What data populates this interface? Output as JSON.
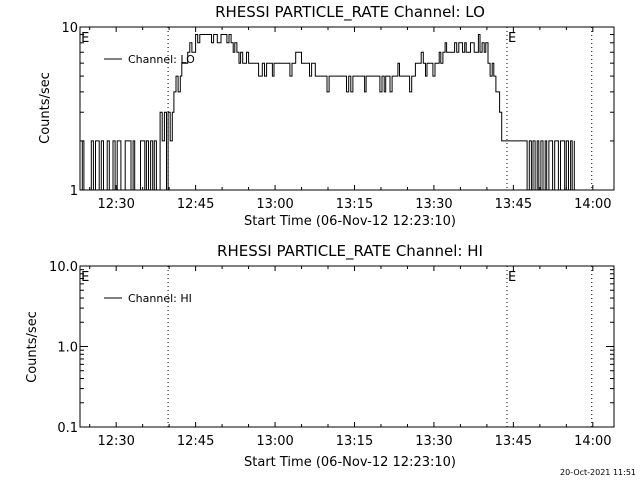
{
  "footer": {
    "stamp": "20-Oct-2021 11:51"
  },
  "chart_data": [
    {
      "type": "line",
      "title": "RHESSI PARTICLE_RATE Channel: LO",
      "xlabel": "Start Time (06-Nov-12 12:23:10)",
      "ylabel": "Counts/sec",
      "x_tick_labels": [
        "12:30",
        "12:45",
        "13:00",
        "13:15",
        "13:30",
        "13:45",
        "14:00"
      ],
      "x_tick_minutes": [
        750,
        765,
        780,
        795,
        810,
        825,
        840
      ],
      "xlim_minutes": [
        743.17,
        844
      ],
      "y_scale": "log",
      "ylim": [
        1,
        10
      ],
      "y_tick_labels": [
        "1",
        "10"
      ],
      "legend": {
        "label": "Channel: LO",
        "position": "top-left"
      },
      "event_markers": [
        {
          "label": "E",
          "time_minutes": 743.2
        },
        {
          "label": "",
          "time_minutes": 759.8
        },
        {
          "label": "E",
          "time_minutes": 823.8
        },
        {
          "label": "",
          "time_minutes": 839.8
        }
      ],
      "series": [
        {
          "name": "Channel: LO",
          "time_minutes": [
            743.2,
            743.6,
            743.9,
            744.2,
            744.6,
            745.0,
            745.3,
            745.7,
            746.1,
            746.5,
            746.8,
            747.2,
            747.6,
            748.0,
            748.3,
            748.7,
            749.1,
            749.4,
            749.8,
            750.2,
            750.6,
            750.9,
            751.3,
            751.7,
            752.0,
            752.4,
            752.8,
            753.2,
            753.5,
            753.9,
            754.3,
            754.6,
            755.0,
            755.4,
            755.7,
            756.1,
            756.5,
            756.9,
            757.2,
            757.6,
            758.0,
            758.3,
            758.7,
            759.1,
            759.5,
            759.8,
            760.2,
            760.6,
            760.9,
            761.3,
            761.7,
            762.1,
            762.4,
            762.8,
            763.2,
            763.5,
            763.9,
            764.3,
            764.6,
            765.0,
            765.4,
            765.8,
            766.1,
            766.5,
            766.9,
            767.2,
            767.6,
            768.0,
            768.4,
            768.7,
            769.1,
            769.5,
            769.8,
            770.2,
            770.6,
            770.9,
            771.3,
            771.7,
            772.1,
            772.4,
            772.8,
            773.2,
            773.5,
            773.9,
            774.3,
            774.6,
            775.0,
            775.4,
            775.8,
            776.1,
            776.5,
            776.9,
            777.2,
            777.6,
            778.0,
            778.4,
            778.7,
            779.1,
            779.5,
            779.8,
            780.2,
            780.6,
            780.9,
            781.3,
            781.7,
            782.1,
            782.4,
            782.8,
            783.2,
            783.5,
            783.9,
            784.3,
            784.6,
            785.0,
            785.4,
            785.8,
            786.1,
            786.5,
            786.9,
            787.2,
            787.6,
            788.0,
            788.4,
            788.7,
            789.1,
            789.5,
            789.8,
            790.2,
            790.6,
            790.9,
            791.3,
            791.7,
            792.1,
            792.4,
            792.8,
            793.2,
            793.5,
            793.9,
            794.3,
            794.7,
            795.0,
            795.4,
            795.8,
            796.1,
            796.5,
            796.9,
            797.2,
            797.6,
            798.0,
            798.4,
            798.7,
            799.1,
            799.5,
            799.8,
            800.2,
            800.6,
            800.9,
            801.3,
            801.7,
            802.1,
            802.4,
            802.8,
            803.2,
            803.5,
            803.9,
            804.3,
            804.7,
            805.0,
            805.4,
            805.8,
            806.1,
            806.5,
            806.9,
            807.2,
            807.6,
            808.0,
            808.4,
            808.7,
            809.1,
            809.5,
            809.8,
            810.2,
            810.6,
            811.0,
            811.3,
            811.7,
            812.1,
            812.4,
            812.8,
            813.2,
            813.5,
            813.9,
            814.3,
            814.7,
            815.0,
            815.4,
            815.8,
            816.1,
            816.5,
            816.9,
            817.2,
            817.6,
            818.0,
            818.4,
            818.7,
            819.1,
            819.5,
            819.8,
            820.2,
            820.6,
            821.0,
            821.3,
            821.7,
            822.1,
            822.4,
            822.8,
            823.2,
            823.5,
            823.9,
            824.3,
            824.7,
            825.0,
            825.4,
            825.8,
            826.1,
            826.5,
            826.9,
            827.3,
            827.6,
            828.0,
            828.4,
            828.7,
            829.1,
            829.5,
            829.8,
            830.2,
            830.6,
            831.0,
            831.3,
            831.7,
            832.1,
            832.4,
            832.8,
            833.2,
            833.5,
            833.9,
            834.3,
            834.7,
            835.0,
            835.4,
            835.8,
            836.1,
            836.5,
            836.9,
            837.3,
            837.6,
            838.0,
            838.4,
            838.7,
            839.1,
            839.5,
            839.8
          ],
          "values": [
            1,
            2,
            1,
            1,
            1,
            1,
            2,
            1,
            2,
            2,
            1,
            2,
            1,
            1,
            2,
            1,
            1,
            2,
            1,
            2,
            2,
            1,
            1,
            2,
            2,
            2,
            1,
            2,
            1,
            1,
            1,
            2,
            2,
            1,
            2,
            1,
            2,
            1,
            2,
            1,
            1,
            3,
            2,
            3,
            1,
            3,
            2,
            3,
            4,
            5,
            4,
            5,
            6,
            6,
            6,
            7,
            8,
            7,
            7,
            9,
            8,
            9,
            9,
            9,
            9,
            9,
            9,
            8,
            9,
            9,
            8,
            8,
            9,
            9,
            9,
            8,
            9,
            8,
            7,
            8,
            7,
            6,
            7,
            6,
            6,
            7,
            6,
            6,
            6,
            6,
            6,
            5,
            5,
            6,
            5,
            6,
            6,
            6,
            5,
            6,
            6,
            6,
            6,
            6,
            6,
            6,
            6,
            5,
            6,
            6,
            7,
            7,
            7,
            6,
            6,
            6,
            6,
            5,
            6,
            6,
            5,
            5,
            5,
            5,
            5,
            5,
            4,
            5,
            5,
            5,
            5,
            5,
            5,
            5,
            5,
            5,
            4,
            5,
            4,
            5,
            5,
            5,
            5,
            5,
            5,
            4,
            5,
            5,
            5,
            5,
            5,
            5,
            5,
            4,
            5,
            4,
            5,
            5,
            4,
            5,
            5,
            5,
            6,
            5,
            5,
            5,
            5,
            5,
            4,
            5,
            5,
            6,
            6,
            6,
            7,
            6,
            5,
            6,
            6,
            6,
            5,
            6,
            6,
            7,
            6,
            7,
            8,
            7,
            7,
            7,
            7,
            8,
            7,
            8,
            8,
            7,
            8,
            7,
            7,
            8,
            8,
            7,
            7,
            9,
            7,
            8,
            7,
            8,
            6,
            5,
            6,
            5,
            4,
            4,
            3,
            2,
            2,
            2,
            2,
            2,
            2,
            2,
            2,
            2,
            2,
            2,
            2,
            2,
            1,
            2,
            1,
            2,
            1,
            2,
            1,
            2,
            1,
            2,
            1,
            2,
            2,
            1,
            2,
            2,
            1,
            2,
            2,
            1,
            2,
            1,
            2,
            1,
            2
          ]
        }
      ]
    },
    {
      "type": "line",
      "title": "RHESSI PARTICLE_RATE Channel: HI",
      "xlabel": "Start Time (06-Nov-12 12:23:10)",
      "ylabel": "Counts/sec",
      "x_tick_labels": [
        "12:30",
        "12:45",
        "13:00",
        "13:15",
        "13:30",
        "13:45",
        "14:00"
      ],
      "x_tick_minutes": [
        750,
        765,
        780,
        795,
        810,
        825,
        840
      ],
      "xlim_minutes": [
        743.17,
        844
      ],
      "y_scale": "log",
      "ylim": [
        0.1,
        10
      ],
      "y_tick_labels": [
        "0.1",
        "1.0",
        "10.0"
      ],
      "legend": {
        "label": "Channel: HI",
        "position": "top-left"
      },
      "event_markers": [
        {
          "label": "E",
          "time_minutes": 743.2
        },
        {
          "label": "",
          "time_minutes": 759.8
        },
        {
          "label": "E",
          "time_minutes": 823.8
        },
        {
          "label": "",
          "time_minutes": 839.8
        }
      ],
      "series": [
        {
          "name": "Channel: HI",
          "time_minutes": [],
          "values": []
        }
      ]
    }
  ]
}
